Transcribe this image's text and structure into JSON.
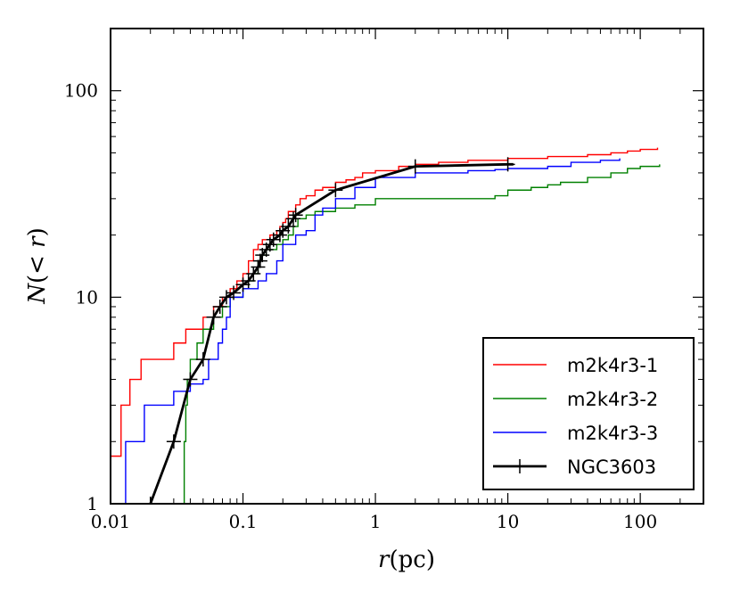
{
  "chart_data": {
    "type": "line",
    "xscale": "log",
    "yscale": "log",
    "xlim": [
      0.01,
      300
    ],
    "ylim": [
      1,
      200
    ],
    "xlabel": "r(pc)",
    "ylabel": "N(<r)",
    "x_ticks": [
      {
        "value": 0.01,
        "label": "0.01"
      },
      {
        "value": 0.1,
        "label": "0.1"
      },
      {
        "value": 1,
        "label": "1"
      },
      {
        "value": 10,
        "label": "10"
      },
      {
        "value": 100,
        "label": "100"
      }
    ],
    "y_ticks": [
      {
        "value": 1,
        "label": "1"
      },
      {
        "value": 10,
        "label": "10"
      },
      {
        "value": 100,
        "label": "100"
      }
    ],
    "legend_position": "lower-right",
    "series": [
      {
        "name": "m2k4r3-1",
        "color": "#ff0000",
        "style": "step",
        "points": [
          [
            0.01,
            1.7
          ],
          [
            0.012,
            3.0
          ],
          [
            0.014,
            4.0
          ],
          [
            0.017,
            5.0
          ],
          [
            0.03,
            6.0
          ],
          [
            0.037,
            7.0
          ],
          [
            0.05,
            8.0
          ],
          [
            0.06,
            9.0
          ],
          [
            0.07,
            10.0
          ],
          [
            0.08,
            11.0
          ],
          [
            0.09,
            12.0
          ],
          [
            0.1,
            13.0
          ],
          [
            0.11,
            15.0
          ],
          [
            0.12,
            17.0
          ],
          [
            0.13,
            18.0
          ],
          [
            0.14,
            19.0
          ],
          [
            0.16,
            20.0
          ],
          [
            0.18,
            21.0
          ],
          [
            0.19,
            22.0
          ],
          [
            0.2,
            23.0
          ],
          [
            0.21,
            24.0
          ],
          [
            0.22,
            26.0
          ],
          [
            0.25,
            28.0
          ],
          [
            0.27,
            30.0
          ],
          [
            0.3,
            31.0
          ],
          [
            0.35,
            33.0
          ],
          [
            0.4,
            34.0
          ],
          [
            0.5,
            36.0
          ],
          [
            0.6,
            37.0
          ],
          [
            0.7,
            38.0
          ],
          [
            0.8,
            40.0
          ],
          [
            1.0,
            41.0
          ],
          [
            1.5,
            43.0
          ],
          [
            2.0,
            44.0
          ],
          [
            3.0,
            45.0
          ],
          [
            5.0,
            46.0
          ],
          [
            10.0,
            47.0
          ],
          [
            20.0,
            48.0
          ],
          [
            40.0,
            49.0
          ],
          [
            60.0,
            50.0
          ],
          [
            80.0,
            51.0
          ],
          [
            100.0,
            52.0
          ],
          [
            135.0,
            53.0
          ]
        ]
      },
      {
        "name": "m2k4r3-2",
        "color": "#008000",
        "style": "step",
        "points": [
          [
            0.035,
            1.0
          ],
          [
            0.036,
            2.0
          ],
          [
            0.037,
            3.0
          ],
          [
            0.038,
            4.0
          ],
          [
            0.04,
            5.0
          ],
          [
            0.045,
            6.0
          ],
          [
            0.05,
            7.0
          ],
          [
            0.06,
            8.0
          ],
          [
            0.07,
            9.0
          ],
          [
            0.08,
            10.0
          ],
          [
            0.1,
            11.0
          ],
          [
            0.11,
            12.0
          ],
          [
            0.12,
            13.0
          ],
          [
            0.13,
            15.0
          ],
          [
            0.14,
            16.0
          ],
          [
            0.15,
            17.0
          ],
          [
            0.18,
            18.0
          ],
          [
            0.2,
            19.0
          ],
          [
            0.22,
            20.0
          ],
          [
            0.24,
            22.0
          ],
          [
            0.26,
            24.0
          ],
          [
            0.3,
            25.0
          ],
          [
            0.35,
            26.0
          ],
          [
            0.5,
            27.0
          ],
          [
            0.7,
            28.0
          ],
          [
            1.0,
            30.0
          ],
          [
            3.0,
            30.0
          ],
          [
            8.0,
            31.0
          ],
          [
            10.0,
            33.0
          ],
          [
            15.0,
            34.0
          ],
          [
            20.0,
            35.0
          ],
          [
            25.0,
            36.0
          ],
          [
            40.0,
            38.0
          ],
          [
            60.0,
            40.0
          ],
          [
            80.0,
            42.0
          ],
          [
            100.0,
            43.0
          ],
          [
            140.0,
            44.0
          ]
        ]
      },
      {
        "name": "m2k4r3-3",
        "color": "#0000ff",
        "style": "step",
        "points": [
          [
            0.012,
            1.0
          ],
          [
            0.013,
            2.0
          ],
          [
            0.018,
            3.0
          ],
          [
            0.03,
            3.5
          ],
          [
            0.04,
            3.8
          ],
          [
            0.05,
            4.0
          ],
          [
            0.055,
            5.0
          ],
          [
            0.065,
            6.0
          ],
          [
            0.07,
            7.0
          ],
          [
            0.075,
            8.0
          ],
          [
            0.08,
            10.0
          ],
          [
            0.1,
            11.0
          ],
          [
            0.13,
            12.0
          ],
          [
            0.15,
            13.0
          ],
          [
            0.18,
            15.0
          ],
          [
            0.2,
            18.0
          ],
          [
            0.25,
            20.0
          ],
          [
            0.3,
            21.0
          ],
          [
            0.35,
            25.0
          ],
          [
            0.4,
            27.0
          ],
          [
            0.5,
            30.0
          ],
          [
            0.7,
            34.0
          ],
          [
            1.0,
            38.0
          ],
          [
            2.0,
            40.0
          ],
          [
            5.0,
            41.0
          ],
          [
            8.0,
            41.5
          ],
          [
            10.0,
            42.0
          ],
          [
            20.0,
            43.0
          ],
          [
            30.0,
            45.0
          ],
          [
            50.0,
            46.0
          ],
          [
            70.0,
            47.0
          ]
        ]
      },
      {
        "name": "NGC3603",
        "color": "#000000",
        "style": "line-markers",
        "points": [
          [
            0.02,
            1.0
          ],
          [
            0.03,
            2.0
          ],
          [
            0.04,
            4.0
          ],
          [
            0.05,
            5.0
          ],
          [
            0.06,
            8.0
          ],
          [
            0.067,
            9.0
          ],
          [
            0.075,
            10.0
          ],
          [
            0.085,
            10.5
          ],
          [
            0.1,
            11.5
          ],
          [
            0.11,
            12.0
          ],
          [
            0.12,
            13.0
          ],
          [
            0.13,
            14.0
          ],
          [
            0.135,
            15.0
          ],
          [
            0.14,
            16.0
          ],
          [
            0.15,
            17.0
          ],
          [
            0.16,
            18.0
          ],
          [
            0.17,
            19.0
          ],
          [
            0.19,
            20.0
          ],
          [
            0.2,
            21.0
          ],
          [
            0.22,
            22.0
          ],
          [
            0.24,
            24.0
          ],
          [
            0.25,
            25.0
          ],
          [
            0.5,
            33.0
          ],
          [
            2.0,
            43.0
          ],
          [
            10.0,
            44.0
          ]
        ],
        "line_extends_to_x": 11.0
      }
    ]
  }
}
